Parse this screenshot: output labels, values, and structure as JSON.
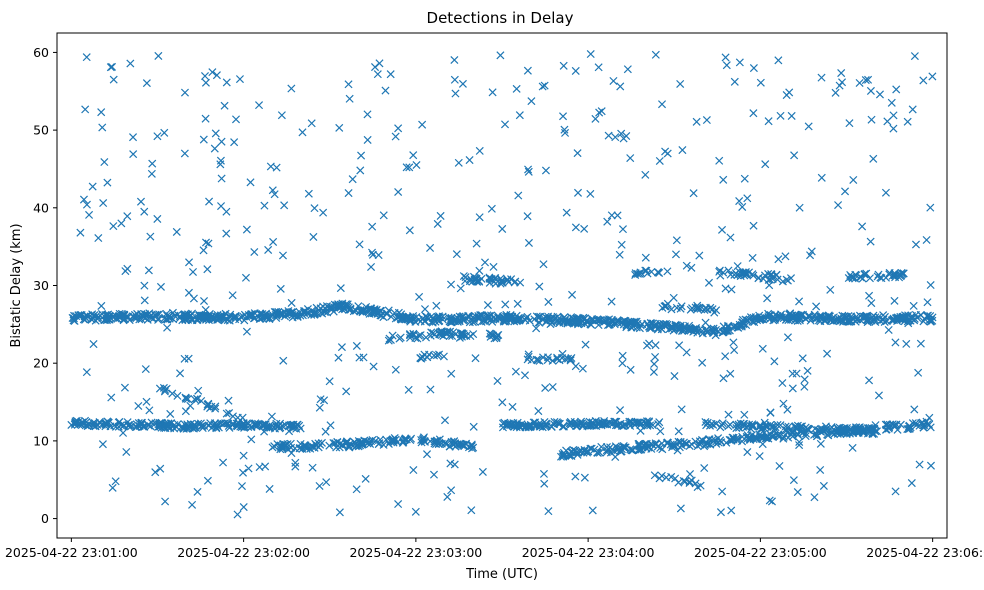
{
  "chart_data": {
    "type": "scatter",
    "title": "Detections in Delay",
    "xlabel": "Time (UTC)",
    "ylabel": "Bistatic Delay (km)",
    "marker": "x",
    "color": "#1f77b4",
    "grid": false,
    "xlim": [
      "2025-04-22 23:00:55",
      "2025-04-22 23:06:05"
    ],
    "ylim": [
      -2.5,
      62.5
    ],
    "x_ticks": [
      "2025-04-22 23:01:00",
      "2025-04-22 23:02:00",
      "2025-04-22 23:03:00",
      "2025-04-22 23:04:00",
      "2025-04-22 23:05:00",
      "2025-04-22 23:06:00"
    ],
    "y_ticks": [
      0,
      10,
      20,
      30,
      40,
      50,
      60
    ],
    "tracks": [
      {
        "points": [
          [
            "23:01:00",
            25.8
          ],
          [
            "23:01:20",
            26.0
          ],
          [
            "23:02:00",
            25.9
          ],
          [
            "23:02:20",
            26.4
          ],
          [
            "23:02:35",
            27.3
          ],
          [
            "23:02:50",
            26.4
          ],
          [
            "23:03:00",
            25.6
          ],
          [
            "23:03:30",
            25.8
          ],
          [
            "23:04:00",
            25.4
          ],
          [
            "23:04:30",
            24.6
          ],
          [
            "23:04:45",
            24.0
          ],
          [
            "23:05:00",
            26.0
          ],
          [
            "23:05:30",
            25.7
          ],
          [
            "23:06:00",
            25.8
          ]
        ],
        "density": 3.2,
        "spread": 0.45
      },
      {
        "points": [
          [
            "23:01:00",
            12.3
          ],
          [
            "23:01:40",
            11.9
          ],
          [
            "23:02:00",
            12.0
          ],
          [
            "23:02:20",
            11.8
          ]
        ],
        "density": 2.5,
        "spread": 0.35
      },
      {
        "points": [
          [
            "23:02:10",
            9.2
          ],
          [
            "23:02:40",
            9.6
          ],
          [
            "23:03:00",
            10.2
          ],
          [
            "23:03:20",
            9.3
          ]
        ],
        "density": 2.2,
        "spread": 0.4
      },
      {
        "points": [
          [
            "23:03:30",
            12.0
          ],
          [
            "23:04:00",
            12.2
          ],
          [
            "23:04:25",
            12.3
          ]
        ],
        "density": 2.6,
        "spread": 0.35
      },
      {
        "points": [
          [
            "23:03:50",
            8.3
          ],
          [
            "23:04:10",
            9.0
          ],
          [
            "23:04:40",
            9.7
          ],
          [
            "23:05:00",
            10.5
          ],
          [
            "23:05:30",
            11.3
          ],
          [
            "23:06:00",
            12.2
          ]
        ],
        "density": 2.2,
        "spread": 0.45
      },
      {
        "points": [
          [
            "23:04:40",
            12.1
          ],
          [
            "23:05:00",
            11.8
          ],
          [
            "23:05:20",
            11.6
          ],
          [
            "23:05:40",
            11.2
          ]
        ],
        "density": 1.6,
        "spread": 0.35
      },
      {
        "points": [
          [
            "23:03:15",
            31.0
          ],
          [
            "23:03:35",
            30.4
          ]
        ],
        "density": 1.8,
        "spread": 0.4
      },
      {
        "points": [
          [
            "23:04:45",
            31.9
          ],
          [
            "23:05:10",
            30.8
          ]
        ],
        "density": 1.5,
        "spread": 0.4
      },
      {
        "points": [
          [
            "23:05:30",
            31.1
          ],
          [
            "23:05:50",
            31.4
          ]
        ],
        "density": 1.8,
        "spread": 0.35
      },
      {
        "points": [
          [
            "23:02:50",
            23.2
          ],
          [
            "23:03:10",
            23.8
          ],
          [
            "23:03:30",
            23.5
          ]
        ],
        "density": 1.5,
        "spread": 0.35
      },
      {
        "points": [
          [
            "23:03:35",
            20.5
          ],
          [
            "23:03:55",
            20.6
          ]
        ],
        "density": 1.0,
        "spread": 0.3
      },
      {
        "points": [
          [
            "23:04:25",
            27.4
          ],
          [
            "23:04:45",
            27.0
          ]
        ],
        "density": 1.2,
        "spread": 0.4
      },
      {
        "points": [
          [
            "23:01:30",
            17.0
          ],
          [
            "23:01:45",
            15.0
          ],
          [
            "23:02:00",
            12.8
          ]
        ],
        "density": 0.9,
        "spread": 0.3
      },
      {
        "points": [
          [
            "23:04:20",
            6.0
          ],
          [
            "23:04:40",
            4.0
          ]
        ],
        "density": 0.6,
        "spread": 0.4
      },
      {
        "points": [
          [
            "23:03:00",
            20.8
          ],
          [
            "23:03:10",
            21.0
          ]
        ],
        "density": 1.2,
        "spread": 0.3
      },
      {
        "points": [
          [
            "23:04:15",
            31.6
          ],
          [
            "23:04:25",
            31.8
          ]
        ],
        "density": 1.2,
        "spread": 0.3
      }
    ],
    "clutter": {
      "count": 520,
      "y_range": [
        0.5,
        60
      ]
    },
    "point_count": 1750
  }
}
